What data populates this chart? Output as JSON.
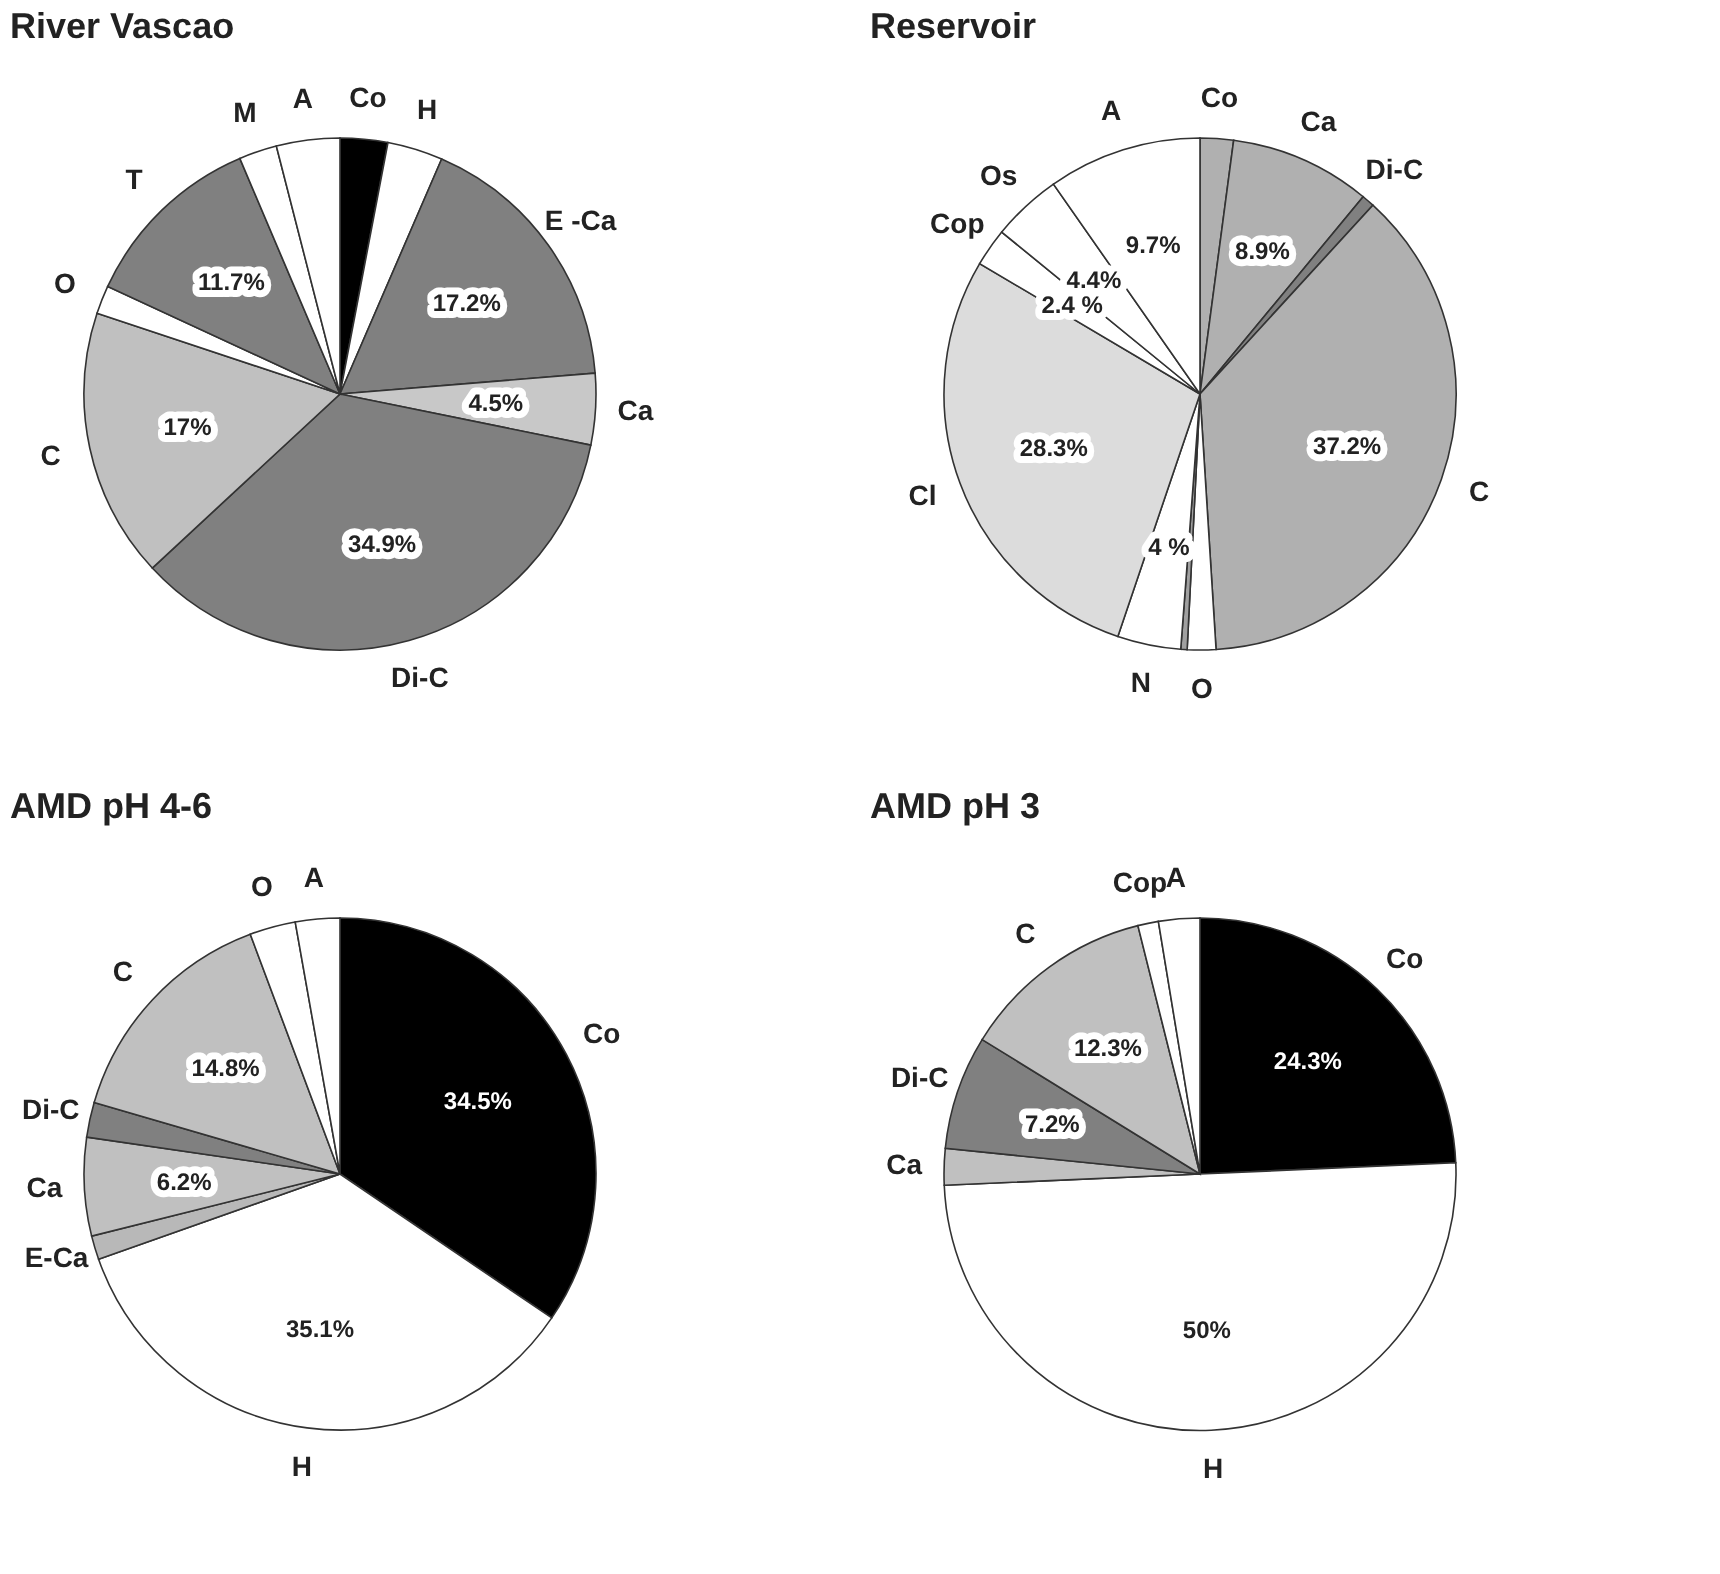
{
  "chart_data": [
    {
      "type": "pie",
      "title": "River Vascao",
      "categories": [
        "Co",
        "H",
        "E -Ca",
        "Ca",
        "Di-C",
        "C",
        "O",
        "T",
        "M",
        "A"
      ],
      "values": [
        3.0,
        3.5,
        17.2,
        4.5,
        34.9,
        17,
        1.8,
        11.7,
        2.4,
        4.0
      ],
      "colors": [
        "#000000",
        "#ffffff",
        "#808080",
        "#c8c8c8",
        "#808080",
        "#c0c0c0",
        "#ffffff",
        "#808080",
        "#ffffff",
        "#ffffff"
      ],
      "value_labels": [
        null,
        null,
        "17.2%",
        "4.5%",
        "34.9%",
        "17%",
        null,
        "11.7%",
        null,
        null
      ]
    },
    {
      "type": "pie",
      "title": "Reservoir",
      "categories": [
        "Co",
        "Ca",
        "Di-C",
        "C",
        "O",
        null,
        "N",
        "Cl",
        "Cop",
        "Os",
        "A"
      ],
      "values": [
        2.1,
        8.9,
        0.8,
        37.2,
        1.8,
        0.4,
        4,
        28.3,
        2.4,
        4.4,
        9.7
      ],
      "colors": [
        "#b0b0b0",
        "#b0b0b0",
        "#808080",
        "#b0b0b0",
        "#ffffff",
        "#a0a0a0",
        "#ffffff",
        "#dcdcdc",
        "#ffffff",
        "#ffffff",
        "#ffffff"
      ],
      "value_labels": [
        null,
        "8.9%",
        null,
        "37.2%",
        null,
        null,
        "4 %",
        "28.3%",
        "2.4 %",
        "4.4%",
        "9.7%"
      ]
    },
    {
      "type": "pie",
      "title": "AMD pH 4-6",
      "categories": [
        "Co",
        "H",
        "E-Ca",
        "Ca",
        "Di-C",
        "C",
        "O",
        "A"
      ],
      "values": [
        34.5,
        35.1,
        1.5,
        6.2,
        2.2,
        14.8,
        2.9,
        2.8
      ],
      "colors": [
        "#000000",
        "#ffffff",
        "#b8b8b8",
        "#c0c0c0",
        "#808080",
        "#c0c0c0",
        "#ffffff",
        "#ffffff"
      ],
      "value_labels": [
        "34.5%",
        "35.1%",
        null,
        "6.2%",
        null,
        "14.8%",
        null,
        null
      ]
    },
    {
      "type": "pie",
      "title": "AMD pH 3",
      "categories": [
        "Co",
        "H",
        "Ca",
        "Di-C",
        "C",
        "Cop",
        "A"
      ],
      "values": [
        24.3,
        50,
        2.3,
        7.2,
        12.3,
        1.3,
        2.6
      ],
      "colors": [
        "#000000",
        "#ffffff",
        "#c0c0c0",
        "#808080",
        "#c0c0c0",
        "#ffffff",
        "#ffffff"
      ],
      "value_labels": [
        "24.3%",
        "50%",
        null,
        "7.2%",
        "12.3%",
        null,
        null
      ]
    }
  ]
}
